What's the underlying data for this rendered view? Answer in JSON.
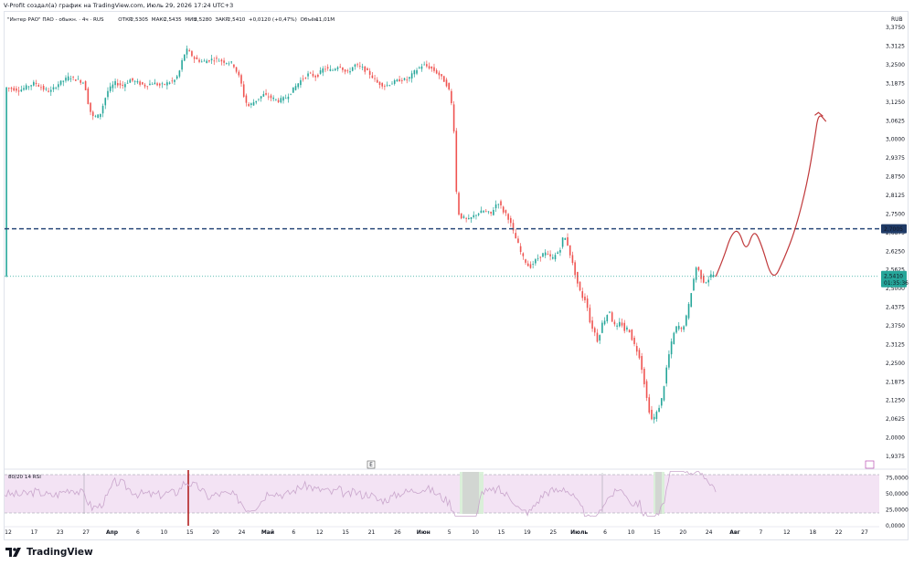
{
  "caption": "V-Profit создал(а) график на TradingView.com, Июль 29, 2026 17:24 UTC+3",
  "legend": {
    "symbol": "\"Интер РАО\" ПАО - обыкн. · 4ч · RUS",
    "open_label": "ОТКР",
    "open": "2,5305",
    "high_label": "МАКС",
    "high": "2,5435",
    "low_label": "МИН",
    "low": "2,5280",
    "close_label": "ЗАКР",
    "close": "2,5410",
    "change": "+0,0120 (+0,47%)",
    "volume_label": "Объём",
    "volume": "11,01M"
  },
  "currency": "RUB",
  "brand": "TradingView",
  "colors": {
    "up": "#26a69a",
    "down": "#ef5350",
    "level_line": "#2a4a7a",
    "current_price": "#26a69a",
    "projection": "#c0393b",
    "rsi_band": "#f3e3f4",
    "rsi_line": "#c9a6cc"
  },
  "chart_data": {
    "type": "candlestick",
    "timeframe": "4h",
    "ylim": [
      1.9375,
      3.4
    ],
    "yticks": [
      "3,3750",
      "3,3125",
      "3,2500",
      "3,1875",
      "3,1250",
      "3,0625",
      "3,0000",
      "2,9375",
      "2,8750",
      "2,8125",
      "2,7500",
      "2,6875",
      "2,6250",
      "2,5625",
      "2,5000",
      "2,4375",
      "2,3750",
      "2,3125",
      "2,2500",
      "2,1875",
      "2,1250",
      "2,0625",
      "2,0000",
      "1,9375"
    ],
    "xticks": [
      "12",
      "17",
      "23",
      "27",
      "Апр",
      "6",
      "10",
      "15",
      "20",
      "24",
      "Май",
      "6",
      "12",
      "15",
      "21",
      "26",
      "Июн",
      "5",
      "10",
      "15",
      "19",
      "25",
      "Июль",
      "6",
      "10",
      "15",
      "20",
      "24",
      "Авг",
      "7",
      "12",
      "18",
      "22",
      "27"
    ],
    "price_path": [
      [
        0,
        3.175
      ],
      [
        4,
        3.165
      ],
      [
        8,
        3.19
      ],
      [
        10,
        3.17
      ],
      [
        12,
        3.16
      ],
      [
        14,
        3.185
      ],
      [
        17,
        3.21
      ],
      [
        19,
        3.2
      ],
      [
        21,
        3.19
      ],
      [
        22,
        3.12
      ],
      [
        23,
        3.075
      ],
      [
        25,
        3.08
      ],
      [
        27,
        3.16
      ],
      [
        29,
        3.19
      ],
      [
        31,
        3.18
      ],
      [
        33,
        3.2
      ],
      [
        35,
        3.19
      ],
      [
        37,
        3.18
      ],
      [
        39,
        3.19
      ],
      [
        41,
        3.18
      ],
      [
        43,
        3.19
      ],
      [
        45,
        3.2
      ],
      [
        46,
        3.23
      ],
      [
        47,
        3.28
      ],
      [
        48,
        3.3
      ],
      [
        50,
        3.27
      ],
      [
        52,
        3.26
      ],
      [
        55,
        3.27
      ],
      [
        58,
        3.26
      ],
      [
        60,
        3.255
      ],
      [
        62,
        3.2
      ],
      [
        63,
        3.14
      ],
      [
        64,
        3.11
      ],
      [
        66,
        3.13
      ],
      [
        68,
        3.15
      ],
      [
        70,
        3.14
      ],
      [
        72,
        3.13
      ],
      [
        74,
        3.14
      ],
      [
        76,
        3.17
      ],
      [
        78,
        3.2
      ],
      [
        80,
        3.22
      ],
      [
        82,
        3.21
      ],
      [
        84,
        3.24
      ],
      [
        86,
        3.23
      ],
      [
        88,
        3.25
      ],
      [
        90,
        3.22
      ],
      [
        92,
        3.25
      ],
      [
        94,
        3.24
      ],
      [
        96,
        3.22
      ],
      [
        98,
        3.19
      ],
      [
        100,
        3.18
      ],
      [
        102,
        3.19
      ],
      [
        104,
        3.2
      ],
      [
        106,
        3.2
      ],
      [
        108,
        3.23
      ],
      [
        110,
        3.25
      ],
      [
        112,
        3.24
      ],
      [
        114,
        3.22
      ],
      [
        116,
        3.19
      ],
      [
        117,
        3.16
      ],
      [
        118,
        3.08
      ],
      [
        119,
        2.76
      ],
      [
        120,
        2.74
      ],
      [
        122,
        2.73
      ],
      [
        124,
        2.75
      ],
      [
        126,
        2.76
      ],
      [
        128,
        2.75
      ],
      [
        129,
        2.78
      ],
      [
        130,
        2.79
      ],
      [
        131,
        2.76
      ],
      [
        132,
        2.75
      ],
      [
        133,
        2.72
      ],
      [
        134,
        2.68
      ],
      [
        135,
        2.65
      ],
      [
        136,
        2.61
      ],
      [
        138,
        2.57
      ],
      [
        140,
        2.6
      ],
      [
        142,
        2.62
      ],
      [
        144,
        2.6
      ],
      [
        146,
        2.63
      ],
      [
        147,
        2.68
      ],
      [
        148,
        2.65
      ],
      [
        149,
        2.6
      ],
      [
        150,
        2.55
      ],
      [
        151,
        2.5
      ],
      [
        152,
        2.47
      ],
      [
        153,
        2.46
      ],
      [
        154,
        2.38
      ],
      [
        155,
        2.36
      ],
      [
        156,
        2.32
      ],
      [
        157,
        2.38
      ],
      [
        158,
        2.4
      ],
      [
        159,
        2.43
      ],
      [
        160,
        2.38
      ],
      [
        161,
        2.37
      ],
      [
        162,
        2.39
      ],
      [
        163,
        2.36
      ],
      [
        164,
        2.37
      ],
      [
        165,
        2.33
      ],
      [
        166,
        2.3
      ],
      [
        167,
        2.27
      ],
      [
        168,
        2.2
      ],
      [
        169,
        2.12
      ],
      [
        170,
        2.06
      ],
      [
        171,
        2.07
      ],
      [
        172,
        2.1
      ],
      [
        173,
        2.14
      ],
      [
        174,
        2.23
      ],
      [
        175,
        2.3
      ],
      [
        176,
        2.35
      ],
      [
        177,
        2.38
      ],
      [
        178,
        2.36
      ],
      [
        179,
        2.39
      ],
      [
        180,
        2.45
      ],
      [
        181,
        2.52
      ],
      [
        182,
        2.58
      ],
      [
        183,
        2.54
      ],
      [
        184,
        2.52
      ],
      [
        185,
        2.53
      ],
      [
        186,
        2.55
      ],
      [
        187,
        2.541
      ]
    ],
    "level_lines": [
      {
        "price": 2.7005,
        "label": "2,7005",
        "style": "dashed"
      }
    ],
    "current_price": {
      "price": 2.541,
      "label": "2,5410",
      "countdown": "01:35:36"
    },
    "projection": [
      [
        187,
        2.54
      ],
      [
        189,
        2.6
      ],
      [
        191,
        2.68
      ],
      [
        193,
        2.7
      ],
      [
        195,
        2.62
      ],
      [
        197,
        2.7
      ],
      [
        199,
        2.65
      ],
      [
        202,
        2.52
      ],
      [
        205,
        2.6
      ],
      [
        208,
        2.7
      ],
      [
        211,
        2.85
      ],
      [
        213,
        3.0
      ],
      [
        214,
        3.09
      ],
      [
        216,
        3.06
      ]
    ],
    "rsi": {
      "label": "80/20 14 RSI",
      "yticks": [
        "75,0000",
        "50,0000",
        "25,0000",
        "0,0000"
      ],
      "upper": 80,
      "lower": 20
    }
  }
}
